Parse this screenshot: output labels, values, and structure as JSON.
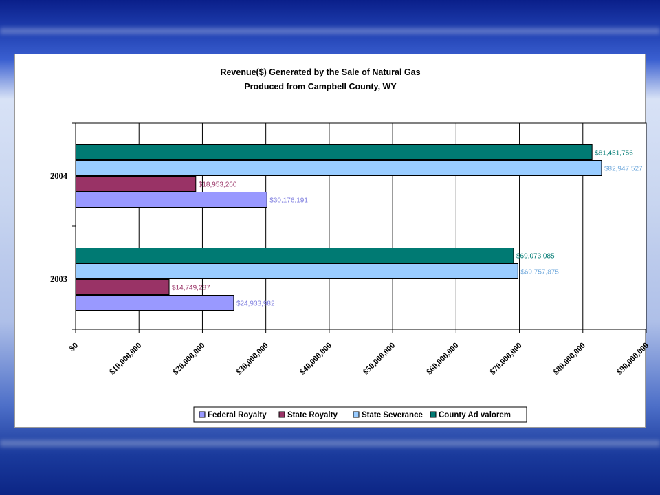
{
  "chart_data": {
    "type": "bar",
    "orientation": "horizontal",
    "title": "Revenue($) Generated by the Sale of Natural Gas",
    "subtitle": "Produced from Campbell County, WY",
    "categories": [
      "2004",
      "2003"
    ],
    "series": [
      {
        "name": "County Ad valorem",
        "color": "#007a73",
        "values": [
          81451756,
          69073085
        ],
        "labels": [
          "$81,451,756",
          "$69,073,085"
        ]
      },
      {
        "name": "State Severance",
        "color": "#99ccff",
        "values": [
          82947527,
          69757875
        ],
        "labels": [
          "$82,947,527",
          "$69,757,875"
        ]
      },
      {
        "name": "State Royalty",
        "color": "#993366",
        "values": [
          18953260,
          14749287
        ],
        "labels": [
          "$18,953,260",
          "$14,749,287"
        ]
      },
      {
        "name": "Federal Royalty",
        "color": "#9999ff",
        "values": [
          30176191,
          24933982
        ],
        "labels": [
          "$30,176,191",
          "$24,933,982"
        ]
      }
    ],
    "xlim": [
      0,
      90000000
    ],
    "x_ticks": [
      {
        "value": 0,
        "label": "$0"
      },
      {
        "value": 10000000,
        "label": "$10,000,000"
      },
      {
        "value": 20000000,
        "label": "$20,000,000"
      },
      {
        "value": 30000000,
        "label": "$30,000,000"
      },
      {
        "value": 40000000,
        "label": "$40,000,000"
      },
      {
        "value": 50000000,
        "label": "$50,000,000"
      },
      {
        "value": 60000000,
        "label": "$60,000,000"
      },
      {
        "value": 70000000,
        "label": "$70,000,000"
      },
      {
        "value": 80000000,
        "label": "$80,000,000"
      },
      {
        "value": 90000000,
        "label": "$90,000,000"
      }
    ],
    "grid": true,
    "legend_position": "bottom",
    "legend_order": [
      "Federal Royalty",
      "State Royalty",
      "State Severance",
      "County Ad valorem"
    ]
  }
}
